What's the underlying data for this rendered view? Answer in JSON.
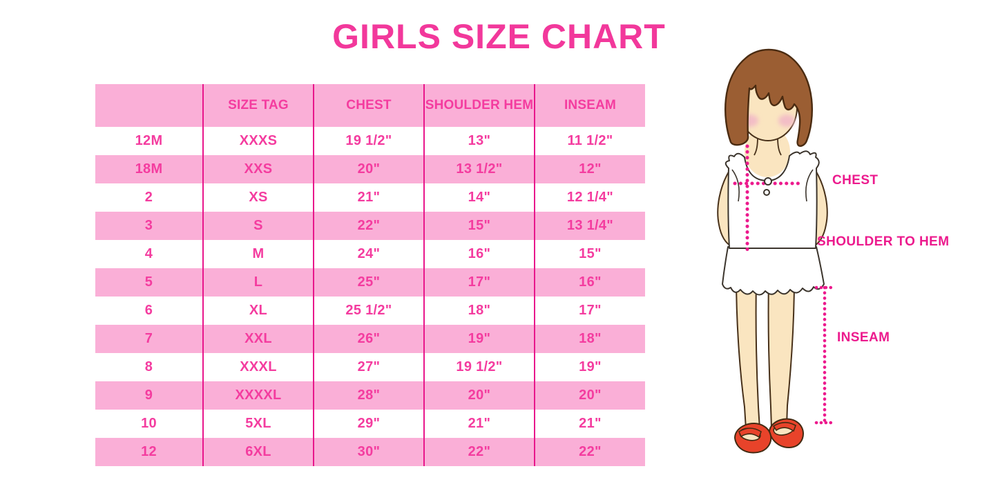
{
  "title": "GIRLS SIZE CHART",
  "colors": {
    "title_pink": "#F2389B",
    "row_pink": "#FAAFD7",
    "table_text_pink": "#F43C9F",
    "divider_pink": "#E8168B",
    "label_magenta": "#EC1A8D",
    "hair_brown": "#9B5E33",
    "skin": "#FAE5C0",
    "blush": "#F3BEC6",
    "shoe_red": "#E8432A"
  },
  "chart_data": {
    "type": "table",
    "title": "GIRLS SIZE CHART",
    "columns": [
      "",
      "SIZE TAG",
      "CHEST",
      "SHOULDER HEM",
      "INSEAM"
    ],
    "rows": [
      [
        "12M",
        "XXXS",
        "19 1/2\"",
        "13\"",
        "11 1/2\""
      ],
      [
        "18M",
        "XXS",
        "20\"",
        "13 1/2\"",
        "12\""
      ],
      [
        "2",
        "XS",
        "21\"",
        "14\"",
        "12 1/4\""
      ],
      [
        "3",
        "S",
        "22\"",
        "15\"",
        "13 1/4\""
      ],
      [
        "4",
        "M",
        "24\"",
        "16\"",
        "15\""
      ],
      [
        "5",
        "L",
        "25\"",
        "17\"",
        "16\""
      ],
      [
        "6",
        "XL",
        "25 1/2\"",
        "18\"",
        "17\""
      ],
      [
        "7",
        "XXL",
        "26\"",
        "19\"",
        "18\""
      ],
      [
        "8",
        "XXXL",
        "27\"",
        "19 1/2\"",
        "19\""
      ],
      [
        "9",
        "XXXXL",
        "28\"",
        "20\"",
        "20\""
      ],
      [
        "10",
        "5XL",
        "29\"",
        "21\"",
        "21\""
      ],
      [
        "12",
        "6XL",
        "30\"",
        "22\"",
        "22\""
      ]
    ],
    "layout": {
      "row_striping": "header pink, then white/pink alternating",
      "gridlines": "vertical column dividers only"
    }
  },
  "diagram": {
    "labels": {
      "chest": "CHEST",
      "shoulder_to_hem": "SHOULDER TO HEM",
      "inseam": "INSEAM"
    }
  }
}
